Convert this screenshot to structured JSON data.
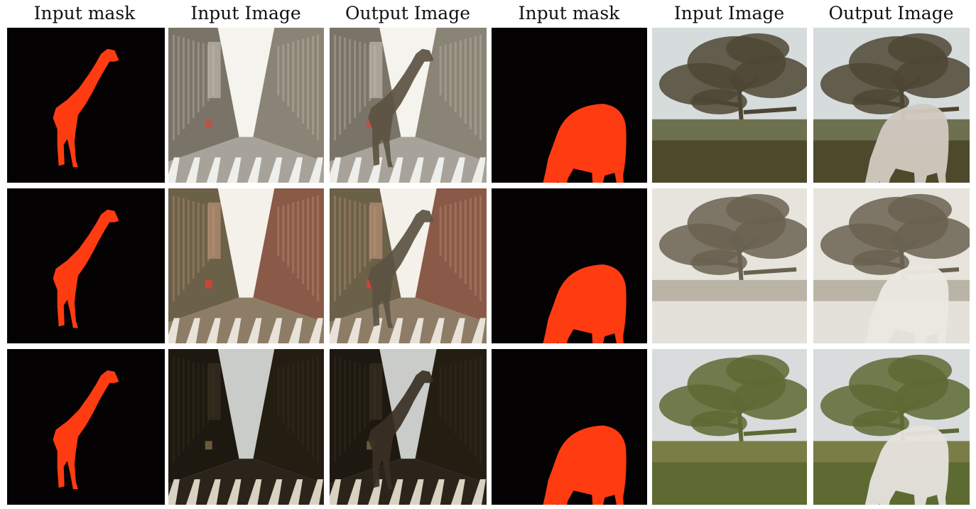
{
  "headers": [
    "Input mask",
    "Input Image",
    "Output Image",
    "Input mask",
    "Input Image",
    "Output Image"
  ],
  "grid": {
    "rows": 3,
    "columns": 6,
    "cells": [
      [
        "giraffe-mask",
        "street-day",
        "street-day-giraffe",
        "sheep-mask",
        "tree-field-day",
        "tree-field-day-sheep"
      ],
      [
        "giraffe-mask",
        "street-red",
        "street-red-giraffe",
        "sheep-mask",
        "tree-field-snow",
        "tree-field-snow-sheep"
      ],
      [
        "giraffe-mask",
        "street-night",
        "street-night-giraffe",
        "sheep-mask",
        "tree-field-green",
        "tree-field-green-sheep"
      ]
    ]
  },
  "colors": {
    "mask_background": "#050203",
    "mask_fill": "#ff3b12"
  }
}
